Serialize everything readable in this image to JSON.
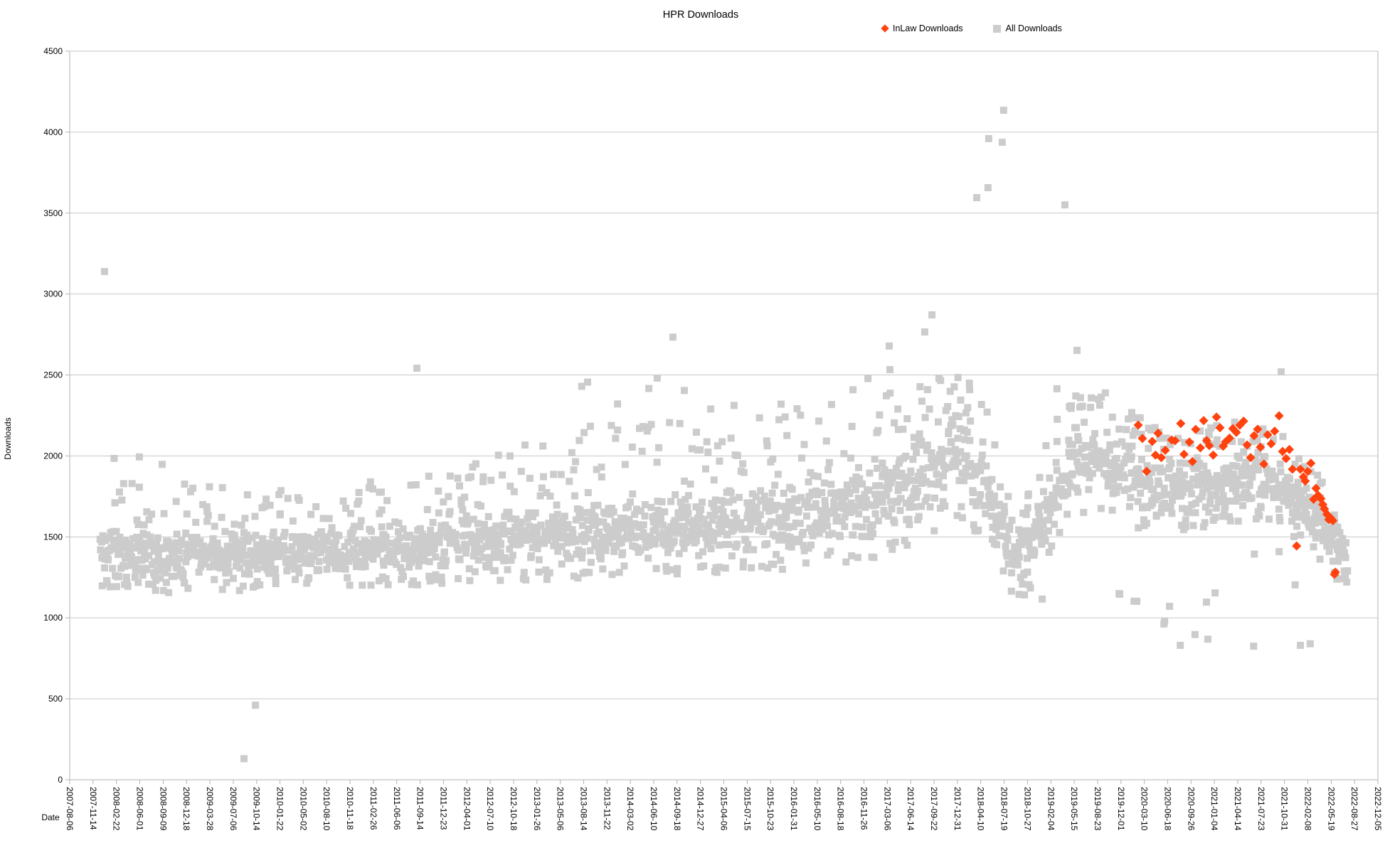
{
  "title": "HPR Downloads",
  "legend": {
    "inlaw_label": "InLaw Downloads",
    "all_label": "All Downloads"
  },
  "axes": {
    "x_title": "Date",
    "y_title": "Downloads"
  },
  "colors": {
    "inlaw": "#ff420e",
    "all": "#cccccc",
    "grid": "#c6c6c6",
    "axis": "#b3b3b3",
    "text": "#000000",
    "background": "#ffffff"
  },
  "chart_data": {
    "type": "scatter",
    "title": "HPR Downloads",
    "xlabel": "Date",
    "ylabel": "Downloads",
    "ylim": [
      0,
      4500
    ],
    "y_ticks": [
      0,
      500,
      1000,
      1500,
      2000,
      2500,
      3000,
      3500,
      4000,
      4500
    ],
    "grid": "horizontal-only",
    "legend_position": "top-right",
    "x_epoch": "2007-08-06",
    "x_tick_interval_days": 100,
    "x_total_days": 5600,
    "x_tick_dates": [
      "2007-08-06",
      "2007-11-14",
      "2008-02-22",
      "2008-06-01",
      "2008-09-09",
      "2008-12-18",
      "2009-03-28",
      "2009-07-06",
      "2009-10-14",
      "2010-01-22",
      "2010-05-02",
      "2010-08-10",
      "2010-11-18",
      "2011-02-26",
      "2011-06-06",
      "2011-09-14",
      "2011-12-23",
      "2012-04-01",
      "2012-07-10",
      "2012-10-18",
      "2013-01-26",
      "2013-05-06",
      "2013-08-14",
      "2013-11-22",
      "2014-03-02",
      "2014-06-10",
      "2014-09-18",
      "2014-12-27",
      "2015-04-06",
      "2015-07-15",
      "2015-10-23",
      "2016-01-31",
      "2016-05-10",
      "2016-08-18",
      "2016-11-26",
      "2017-03-06",
      "2017-06-14",
      "2017-09-22",
      "2017-12-31",
      "2018-04-10",
      "2018-07-19",
      "2018-10-27",
      "2019-02-04",
      "2019-05-15",
      "2019-08-23",
      "2019-12-01",
      "2020-03-10",
      "2020-06-18",
      "2020-09-26",
      "2021-01-04",
      "2021-04-14",
      "2021-07-23",
      "2021-10-31",
      "2022-02-08",
      "2022-05-19",
      "2022-08-27",
      "2022-12-05"
    ],
    "series": [
      {
        "name": "All Downloads",
        "marker": "square",
        "marker_size_px": 10,
        "color": "#cccccc",
        "cloud_note": "dense daily-episode cloud, values approximated by time-varying band [day_offset, band_low, band_high, upper_envelope]",
        "cloud_band_nodes": [
          [
            130,
            1240,
            1580,
            1850
          ],
          [
            400,
            1220,
            1560,
            1840
          ],
          [
            700,
            1230,
            1560,
            1800
          ],
          [
            1000,
            1240,
            1570,
            1800
          ],
          [
            1300,
            1260,
            1600,
            1850
          ],
          [
            1600,
            1280,
            1630,
            1900
          ],
          [
            1900,
            1300,
            1680,
            2050
          ],
          [
            2200,
            1310,
            1720,
            2200
          ],
          [
            2500,
            1330,
            1760,
            2280
          ],
          [
            2800,
            1350,
            1820,
            2300
          ],
          [
            3100,
            1370,
            1900,
            2330
          ],
          [
            3400,
            1420,
            2000,
            2380
          ],
          [
            3600,
            1500,
            2150,
            2420
          ],
          [
            3720,
            1600,
            2300,
            2490
          ],
          [
            3820,
            1680,
            2460,
            2500
          ],
          [
            3880,
            1600,
            2300,
            2460
          ],
          [
            3960,
            1400,
            1900,
            2150
          ],
          [
            4030,
            1200,
            1580,
            1700
          ],
          [
            4120,
            1220,
            1650,
            1850
          ],
          [
            4200,
            1500,
            1950,
            2200
          ],
          [
            4280,
            1700,
            2150,
            2380
          ],
          [
            4420,
            1720,
            2260,
            2430
          ],
          [
            4520,
            1620,
            2150,
            2300
          ],
          [
            4650,
            1580,
            2020,
            2180
          ],
          [
            4850,
            1620,
            2040,
            2200
          ],
          [
            5050,
            1650,
            2060,
            2220
          ],
          [
            5180,
            1620,
            2000,
            2160
          ],
          [
            5290,
            1520,
            1880,
            1990
          ],
          [
            5380,
            1380,
            1720,
            1830
          ],
          [
            5440,
            1280,
            1560,
            1650
          ],
          [
            5470,
            1240,
            1470,
            1540
          ]
        ],
        "cloud_step_days": 3,
        "seed": 11,
        "outlier_points": [
          [
            149,
            3139
          ],
          [
            190,
            1985
          ],
          [
            298,
            1994
          ],
          [
            396,
            1948
          ],
          [
            746,
            130
          ],
          [
            795,
            460
          ],
          [
            1486,
            2542
          ],
          [
            2192,
            2430
          ],
          [
            2217,
            2456
          ],
          [
            2345,
            2321
          ],
          [
            2479,
            2417
          ],
          [
            2515,
            2481
          ],
          [
            2582,
            2734
          ],
          [
            2631,
            2404
          ],
          [
            2744,
            2290
          ],
          [
            2844,
            2312
          ],
          [
            3045,
            2320
          ],
          [
            3353,
            2409
          ],
          [
            3417,
            2478
          ],
          [
            3508,
            2679
          ],
          [
            3511,
            2533
          ],
          [
            3660,
            2766
          ],
          [
            3691,
            2871
          ],
          [
            3883,
            3595
          ],
          [
            3931,
            3657
          ],
          [
            3934,
            3960
          ],
          [
            3992,
            3937
          ],
          [
            3998,
            4135
          ],
          [
            4087,
            1142
          ],
          [
            4163,
            1116
          ],
          [
            4226,
            2415
          ],
          [
            4260,
            3551
          ],
          [
            4312,
            2652
          ],
          [
            4492,
            1150
          ],
          [
            4495,
            1146
          ],
          [
            4556,
            1103
          ],
          [
            4568,
            1102
          ],
          [
            4684,
            962
          ],
          [
            4687,
            979
          ],
          [
            4708,
            1071
          ],
          [
            4754,
            830
          ],
          [
            4817,
            897
          ],
          [
            4866,
            1097
          ],
          [
            4872,
            868
          ],
          [
            4903,
            1154
          ],
          [
            5068,
            825
          ],
          [
            5071,
            1394
          ],
          [
            5177,
            1409
          ],
          [
            5186,
            2519
          ],
          [
            5246,
            1204
          ],
          [
            5268,
            830
          ],
          [
            5310,
            840
          ],
          [
            5408,
            1350
          ],
          [
            5460,
            1243
          ]
        ]
      },
      {
        "name": "InLaw Downloads",
        "marker": "diamond",
        "marker_size_px": 13,
        "color": "#ff420e",
        "points": [
          [
            4574,
            2191
          ],
          [
            4592,
            2108
          ],
          [
            4610,
            1905
          ],
          [
            4634,
            2090
          ],
          [
            4648,
            2005
          ],
          [
            4659,
            2140
          ],
          [
            4673,
            1990
          ],
          [
            4690,
            2035
          ],
          [
            4717,
            2099
          ],
          [
            4732,
            2094
          ],
          [
            4756,
            2200
          ],
          [
            4770,
            2010
          ],
          [
            4793,
            2086
          ],
          [
            4806,
            1965
          ],
          [
            4820,
            2164
          ],
          [
            4840,
            2050
          ],
          [
            4854,
            2218
          ],
          [
            4867,
            2095
          ],
          [
            4878,
            2064
          ],
          [
            4895,
            2005
          ],
          [
            4909,
            2240
          ],
          [
            4924,
            2174
          ],
          [
            4938,
            2060
          ],
          [
            4948,
            2087
          ],
          [
            4965,
            2110
          ],
          [
            4979,
            2169
          ],
          [
            4994,
            2146
          ],
          [
            5009,
            2190
          ],
          [
            5025,
            2215
          ],
          [
            5040,
            2068
          ],
          [
            5055,
            1990
          ],
          [
            5070,
            2125
          ],
          [
            5085,
            2165
          ],
          [
            5097,
            2054
          ],
          [
            5112,
            1950
          ],
          [
            5128,
            2131
          ],
          [
            5143,
            2075
          ],
          [
            5158,
            2153
          ],
          [
            5177,
            2248
          ],
          [
            5192,
            2028
          ],
          [
            5207,
            1984
          ],
          [
            5221,
            2040
          ],
          [
            5234,
            1918
          ],
          [
            5252,
            1444
          ],
          [
            5268,
            1918
          ],
          [
            5281,
            1870
          ],
          [
            5289,
            1845
          ],
          [
            5300,
            1905
          ],
          [
            5313,
            1955
          ],
          [
            5325,
            1732
          ],
          [
            5335,
            1800
          ],
          [
            5344,
            1757
          ],
          [
            5356,
            1736
          ],
          [
            5364,
            1700
          ],
          [
            5371,
            1673
          ],
          [
            5382,
            1640
          ],
          [
            5390,
            1607
          ],
          [
            5399,
            1615
          ],
          [
            5407,
            1600
          ],
          [
            5414,
            1269
          ],
          [
            5418,
            1282
          ]
        ]
      }
    ]
  }
}
